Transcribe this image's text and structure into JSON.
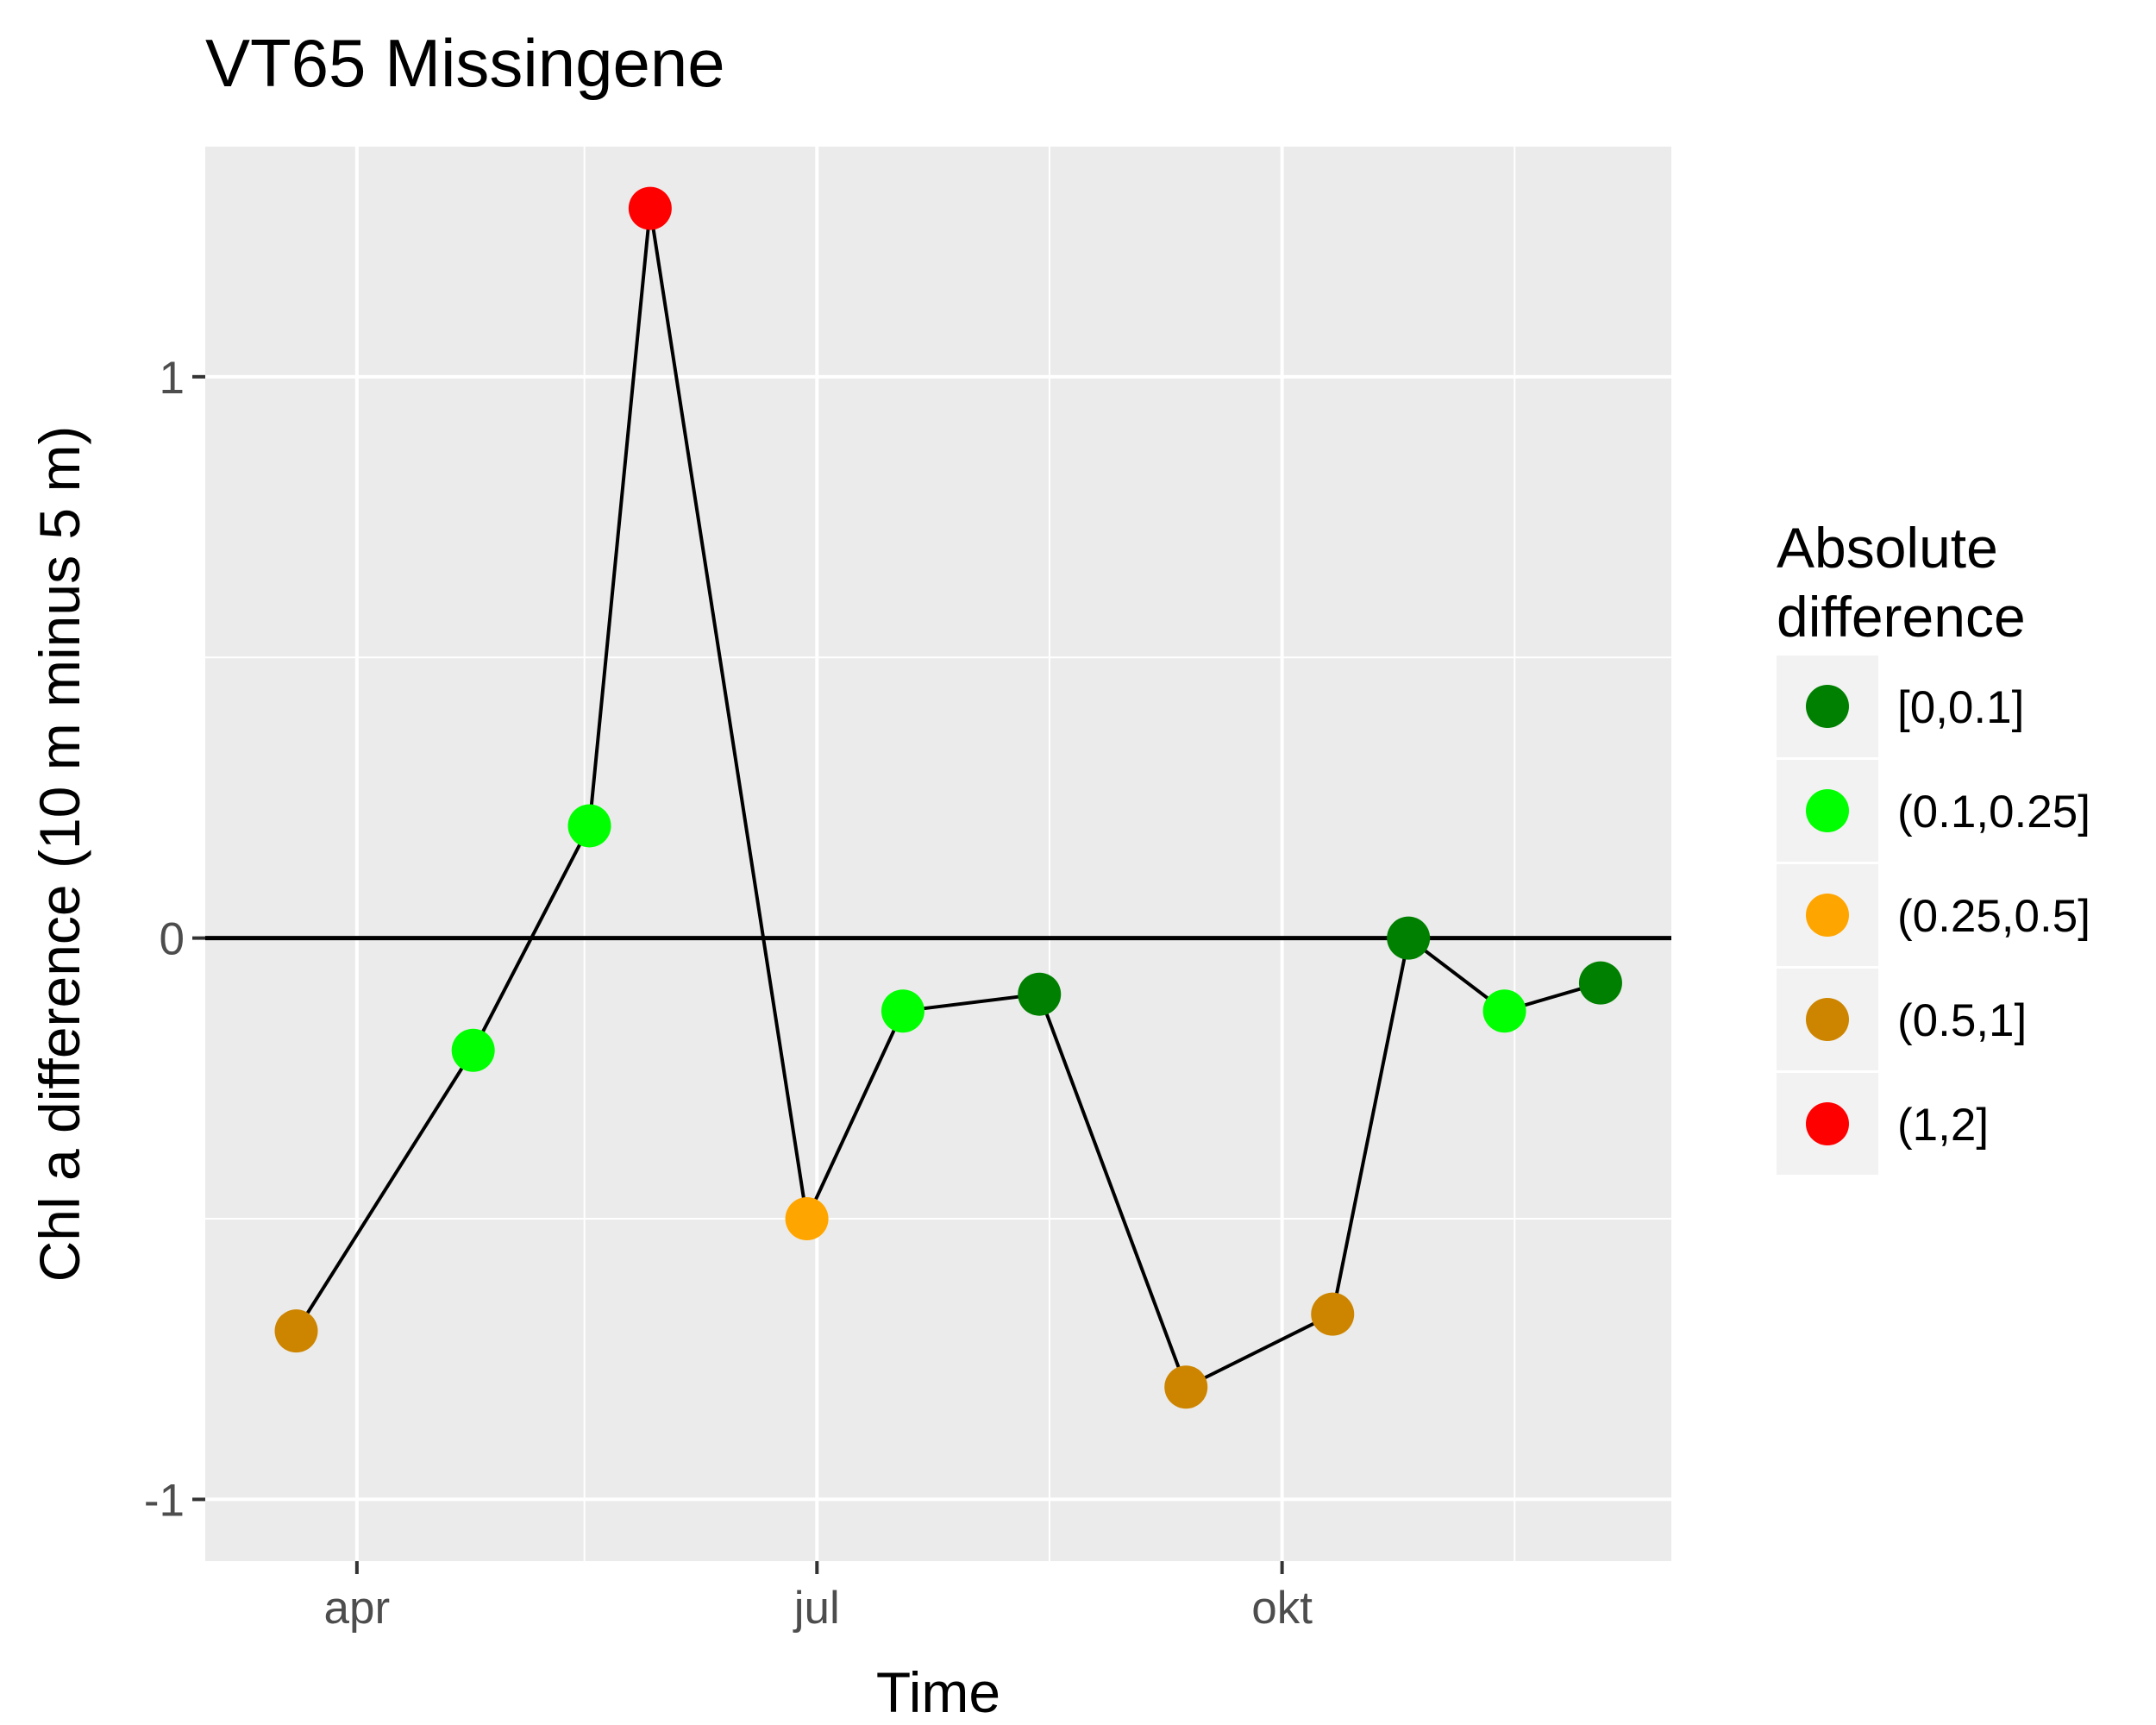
{
  "chart_data": {
    "type": "line",
    "title": "VT65 Missingene",
    "xlabel": "Time",
    "ylabel": "Chl a difference (10 m minus 5 m)",
    "x_ticks": [
      {
        "label": "apr",
        "date": "2017-04-01"
      },
      {
        "label": "jul",
        "date": "2017-07-01"
      },
      {
        "label": "okt",
        "date": "2017-10-01"
      }
    ],
    "x_minor_dates": [
      "2017-05-16",
      "2017-08-16",
      "2017-11-16"
    ],
    "xlim": [
      "2017-03-02",
      "2017-12-17"
    ],
    "y_ticks": [
      -1,
      0,
      1
    ],
    "ylim": [
      -1.11,
      1.41
    ],
    "hline": 0,
    "grid": true,
    "legend": {
      "title": [
        "Absolute",
        "difference"
      ],
      "placement": "right",
      "items": [
        {
          "label": "[0,0.1]",
          "color": "#008000"
        },
        {
          "label": "(0.1,0.25]",
          "color": "#00FF00"
        },
        {
          "label": "(0.25,0.5]",
          "color": "#FFA500"
        },
        {
          "label": "(0.5,1]",
          "color": "#CD8500"
        },
        {
          "label": "(1,2]",
          "color": "#FF0000"
        }
      ]
    },
    "points": [
      {
        "date": "2017-03-20",
        "value": -0.7,
        "class": "(0.5,1]"
      },
      {
        "date": "2017-04-24",
        "value": -0.2,
        "class": "(0.1,0.25]"
      },
      {
        "date": "2017-05-17",
        "value": 0.2,
        "class": "(0.1,0.25]"
      },
      {
        "date": "2017-05-29",
        "value": 1.3,
        "class": "(1,2]"
      },
      {
        "date": "2017-06-29",
        "value": -0.5,
        "class": "(0.25,0.5]"
      },
      {
        "date": "2017-07-18",
        "value": -0.13,
        "class": "(0.1,0.25]"
      },
      {
        "date": "2017-08-14",
        "value": -0.1,
        "class": "[0,0.1]"
      },
      {
        "date": "2017-09-12",
        "value": -0.8,
        "class": "(0.5,1]"
      },
      {
        "date": "2017-10-11",
        "value": -0.67,
        "class": "(0.5,1]"
      },
      {
        "date": "2017-10-26",
        "value": 0.0,
        "class": "[0,0.1]"
      },
      {
        "date": "2017-11-14",
        "value": -0.13,
        "class": "(0.1,0.25]"
      },
      {
        "date": "2017-12-03",
        "value": -0.08,
        "class": "[0,0.1]"
      }
    ]
  }
}
